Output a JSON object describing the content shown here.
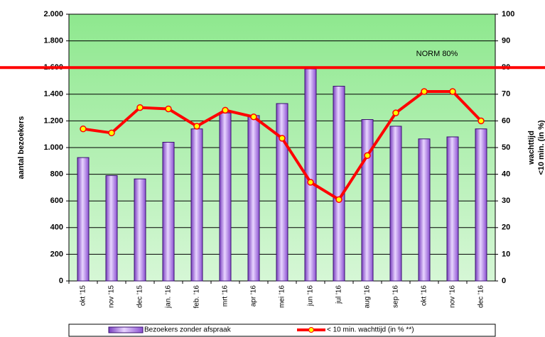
{
  "chart_data": {
    "type": "bar_line",
    "categories": [
      "okt '15",
      "nov '15",
      "dec '15",
      "jan. '16",
      "feb. '16",
      "mrt '16",
      "apr '16",
      "mei '16",
      "jun '16",
      "jul '16",
      "aug '16",
      "sep '16",
      "okt '16",
      "nov '16",
      "dec '16"
    ],
    "series": [
      {
        "name": "Bezoekers zonder afspraak",
        "color": "#c9a0f0",
        "type": "bar",
        "values": [
          925,
          790,
          765,
          1040,
          1140,
          1260,
          1240,
          1330,
          1590,
          1460,
          1210,
          1160,
          1065,
          1080,
          1140
        ]
      },
      {
        "name": "< 10 min. wachttijd (in % **)",
        "color": "#ff0000",
        "marker_color": "#ffff00",
        "type": "line",
        "axis": "y2",
        "values": [
          57,
          55.5,
          65,
          64.5,
          58,
          64,
          61.5,
          53.5,
          37,
          30.5,
          47,
          63,
          71,
          71,
          60
        ]
      }
    ],
    "norm": {
      "value": 80,
      "label": "NORM 80%",
      "color": "#ff0000"
    },
    "ylabel": "aantal bezoekers",
    "y2label": [
      "wachttijd",
      "<10 min. (in %)"
    ],
    "ylim": [
      0,
      2000
    ],
    "yticks": [
      0,
      200,
      400,
      600,
      800,
      {
        "value": 1000,
        "label": "1.000"
      },
      {
        "value": 1200,
        "label": "1.200"
      },
      {
        "value": 1400,
        "label": "1.400"
      },
      {
        "value": 1600,
        "label": "1.600"
      },
      {
        "value": 1800,
        "label": "1.800"
      },
      {
        "value": 2000,
        "label": "2.000"
      }
    ],
    "y2lim": [
      0,
      100
    ],
    "y2ticks": [
      0,
      10,
      20,
      30,
      40,
      50,
      60,
      70,
      80,
      90,
      100
    ],
    "grid": true
  }
}
